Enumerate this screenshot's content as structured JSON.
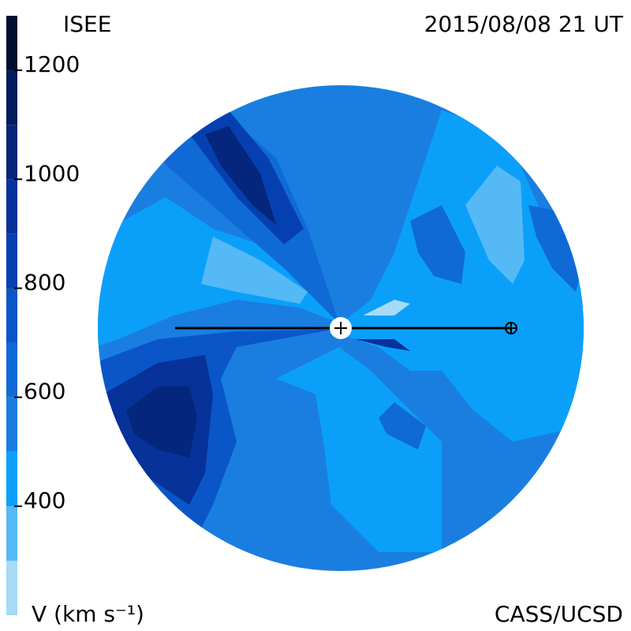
{
  "chart_data": {
    "type": "contour-map",
    "title": "ISEE",
    "subtitle": "2015/08/08 21 UT",
    "colorbar_label": "V (km s⁻¹)",
    "credit": "CASS/UCSD",
    "levels": [
      200,
      300,
      400,
      500,
      600,
      700,
      800,
      900,
      1000,
      1100,
      1200,
      1300
    ],
    "colors": [
      "#a6daf7",
      "#55b9f6",
      "#0aa0fa",
      "#1a7ee0",
      "#0f6ad6",
      "#0a56c8",
      "#0640b0",
      "#06329a",
      "#04267c",
      "#031a5c",
      "#020e30"
    ],
    "clim": [
      200,
      1300
    ],
    "cticks": [
      400,
      600,
      800,
      1000,
      1200
    ]
  }
}
